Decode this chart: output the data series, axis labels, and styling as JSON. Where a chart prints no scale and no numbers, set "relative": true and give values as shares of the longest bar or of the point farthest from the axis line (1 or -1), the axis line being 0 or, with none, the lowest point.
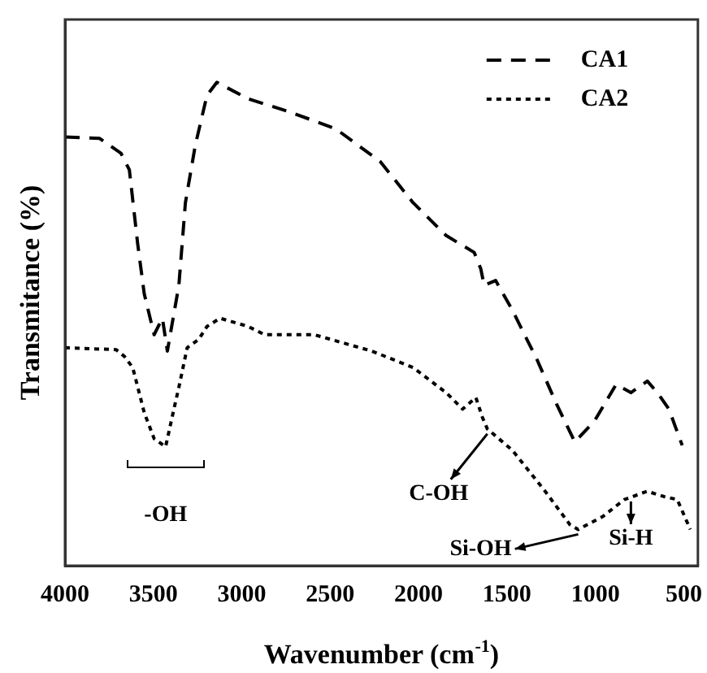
{
  "chart_data": {
    "type": "line",
    "xlabel": "Wavenumber (cm$^{-1}$)",
    "ylabel": "Transmitance (%)",
    "relative": true,
    "xlim": [
      4000,
      420
    ],
    "xticks": [
      4000,
      3500,
      3000,
      2500,
      2000,
      1500,
      1000,
      500
    ],
    "tick_labels": "x",
    "legend": "top right",
    "marker": "none",
    "grid": false,
    "series": [
      {
        "name": "CA1",
        "color": "#000000",
        "line_style": "dashed",
        "x": [
          4000,
          3804,
          3683,
          3636,
          3589,
          3552,
          3496,
          3449,
          3421,
          3356,
          3319,
          3263,
          3197,
          3141,
          2964,
          2731,
          2469,
          2217,
          2031,
          1844,
          1685,
          1648,
          1629,
          1564,
          1470,
          1331,
          1219,
          1116,
          1004,
          883,
          799,
          706,
          649,
          584,
          509
        ],
        "values": [
          0.887,
          0.884,
          0.853,
          0.819,
          0.666,
          0.563,
          0.478,
          0.512,
          0.444,
          0.58,
          0.751,
          0.87,
          0.973,
          1,
          0.966,
          0.939,
          0.904,
          0.836,
          0.751,
          0.683,
          0.648,
          0.614,
          0.58,
          0.59,
          0.529,
          0.427,
          0.334,
          0.256,
          0.3,
          0.375,
          0.358,
          0.382,
          0.358,
          0.324,
          0.249
        ]
      },
      {
        "name": "CA2",
        "color": "#000000",
        "line_style": "dotted",
        "x": [
          4000,
          3711,
          3664,
          3617,
          3552,
          3496,
          3431,
          3384,
          3356,
          3309,
          3244,
          3197,
          3123,
          2964,
          2871,
          2591,
          2264,
          2031,
          1844,
          1751,
          1676,
          1639,
          1611,
          1470,
          1284,
          1144,
          1097,
          957,
          836,
          706,
          612,
          537,
          463
        ],
        "values": [
          0.451,
          0.447,
          0.433,
          0.41,
          0.317,
          0.263,
          0.246,
          0.324,
          0.369,
          0.451,
          0.468,
          0.495,
          0.512,
          0.495,
          0.478,
          0.478,
          0.444,
          0.41,
          0.358,
          0.324,
          0.348,
          0.307,
          0.283,
          0.239,
          0.154,
          0.085,
          0.075,
          0.102,
          0.137,
          0.154,
          0.143,
          0.137,
          0.075
        ]
      }
    ],
    "annotations": [
      {
        "text": "-OH",
        "x": 3431,
        "y": 0.246
      },
      {
        "text": "C-OH",
        "x": 1611,
        "y": 0.283
      },
      {
        "text": "Si-OH",
        "x": 1097,
        "y": 0.075
      },
      {
        "text": "Si-H",
        "x": 799,
        "y": 0.143
      }
    ]
  }
}
